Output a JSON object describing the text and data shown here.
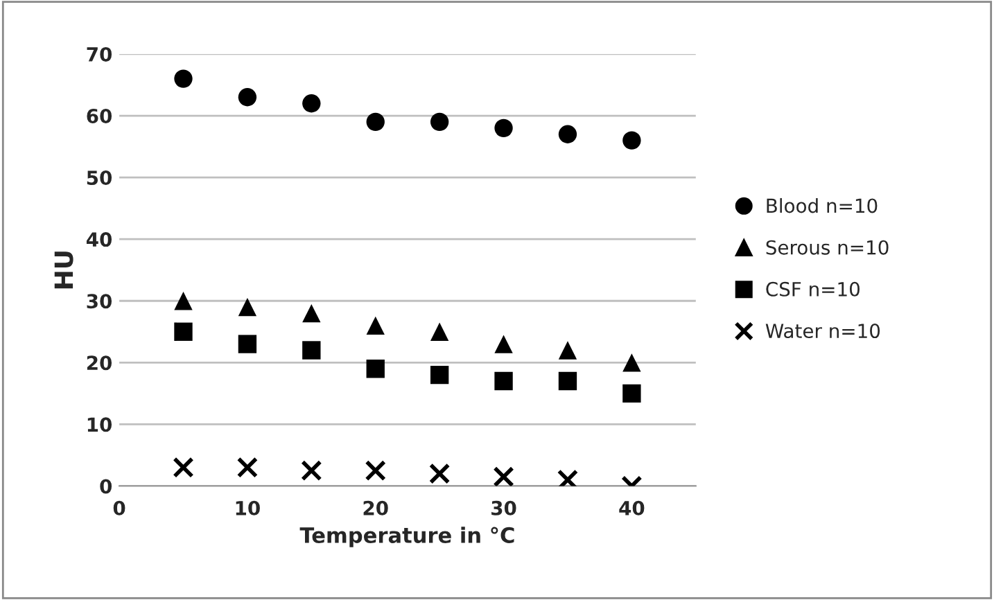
{
  "chart_data": {
    "type": "scatter",
    "xlabel": "Temperature in °C",
    "ylabel": "HU",
    "x": [
      5,
      10,
      15,
      20,
      25,
      30,
      35,
      40
    ],
    "series": [
      {
        "name": "Blood n=10",
        "color": "#000000",
        "marker": "circle",
        "values": [
          66,
          63,
          62,
          59,
          59,
          58,
          57,
          56
        ]
      },
      {
        "name": "Serous n=10",
        "color": "#000000",
        "marker": "triangle",
        "values": [
          30,
          29,
          28,
          26,
          25,
          23,
          22,
          20
        ]
      },
      {
        "name": "CSF n=10",
        "color": "#000000",
        "marker": "square",
        "values": [
          25,
          23,
          22,
          19,
          18,
          17,
          17,
          15
        ]
      },
      {
        "name": "Water n=10",
        "color": "#000000",
        "marker": "cross",
        "values": [
          3,
          3,
          2.5,
          2.5,
          2,
          1.5,
          1,
          0
        ]
      }
    ],
    "xlim": [
      0,
      45
    ],
    "xticks": [
      0,
      10,
      20,
      30,
      40
    ],
    "ylim": [
      0,
      70
    ],
    "yticks": [
      0,
      10,
      20,
      30,
      40,
      50,
      60,
      70
    ],
    "grid": "y",
    "legend": "right"
  }
}
